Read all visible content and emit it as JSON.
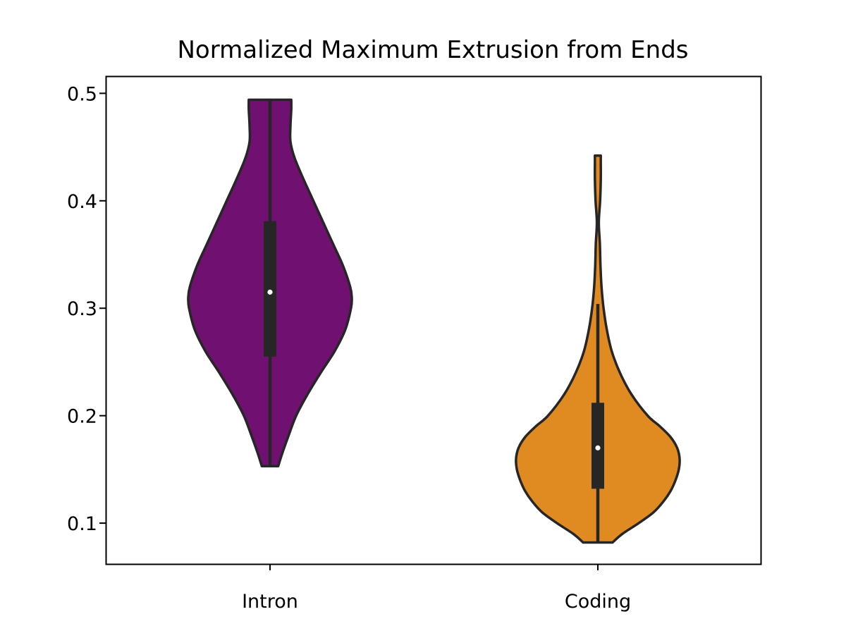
{
  "chart_data": {
    "type": "violin",
    "title": "Normalized Maximum Extrusion from Ends",
    "xlabel": "",
    "ylabel": "",
    "categories": [
      "Intron",
      "Coding"
    ],
    "ylim": [
      0.062,
      0.516
    ],
    "yticks": [
      0.1,
      0.2,
      0.3,
      0.4,
      0.5
    ],
    "ytick_labels": [
      "0.1",
      "0.2",
      "0.3",
      "0.4",
      "0.5"
    ],
    "grid": false,
    "legend": "none",
    "violins": [
      {
        "category": "Intron",
        "color": "#701070",
        "min": 0.153,
        "max": 0.494,
        "q1": 0.255,
        "median": 0.315,
        "q3": 0.381,
        "whisker_low": 0.153,
        "whisker_high": 0.494,
        "density_profile": [
          [
            0.153,
            0.1
          ],
          [
            0.165,
            0.15
          ],
          [
            0.18,
            0.22
          ],
          [
            0.2,
            0.32
          ],
          [
            0.22,
            0.46
          ],
          [
            0.24,
            0.62
          ],
          [
            0.26,
            0.79
          ],
          [
            0.28,
            0.92
          ],
          [
            0.3,
            0.99
          ],
          [
            0.31,
            1.0
          ],
          [
            0.32,
            0.98
          ],
          [
            0.34,
            0.89
          ],
          [
            0.36,
            0.77
          ],
          [
            0.38,
            0.65
          ],
          [
            0.4,
            0.53
          ],
          [
            0.42,
            0.41
          ],
          [
            0.44,
            0.3
          ],
          [
            0.455,
            0.25
          ],
          [
            0.47,
            0.25
          ],
          [
            0.485,
            0.26
          ],
          [
            0.494,
            0.26
          ]
        ]
      },
      {
        "category": "Coding",
        "color": "#e08a22",
        "min": 0.082,
        "max": 0.442,
        "q1": 0.132,
        "median": 0.17,
        "q3": 0.212,
        "whisker_low": 0.082,
        "whisker_high": 0.304,
        "density_profile": [
          [
            0.082,
            0.18
          ],
          [
            0.09,
            0.3
          ],
          [
            0.1,
            0.5
          ],
          [
            0.11,
            0.68
          ],
          [
            0.12,
            0.8
          ],
          [
            0.13,
            0.89
          ],
          [
            0.14,
            0.95
          ],
          [
            0.15,
            0.99
          ],
          [
            0.16,
            1.0
          ],
          [
            0.17,
            0.97
          ],
          [
            0.18,
            0.89
          ],
          [
            0.19,
            0.76
          ],
          [
            0.2,
            0.61
          ],
          [
            0.22,
            0.41
          ],
          [
            0.24,
            0.27
          ],
          [
            0.26,
            0.17
          ],
          [
            0.28,
            0.11
          ],
          [
            0.3,
            0.07
          ],
          [
            0.32,
            0.045
          ],
          [
            0.34,
            0.032
          ],
          [
            0.36,
            0.025
          ],
          [
            0.38,
            0.012
          ],
          [
            0.4,
            0.028
          ],
          [
            0.42,
            0.036
          ],
          [
            0.435,
            0.036
          ],
          [
            0.442,
            0.036
          ]
        ]
      }
    ]
  }
}
